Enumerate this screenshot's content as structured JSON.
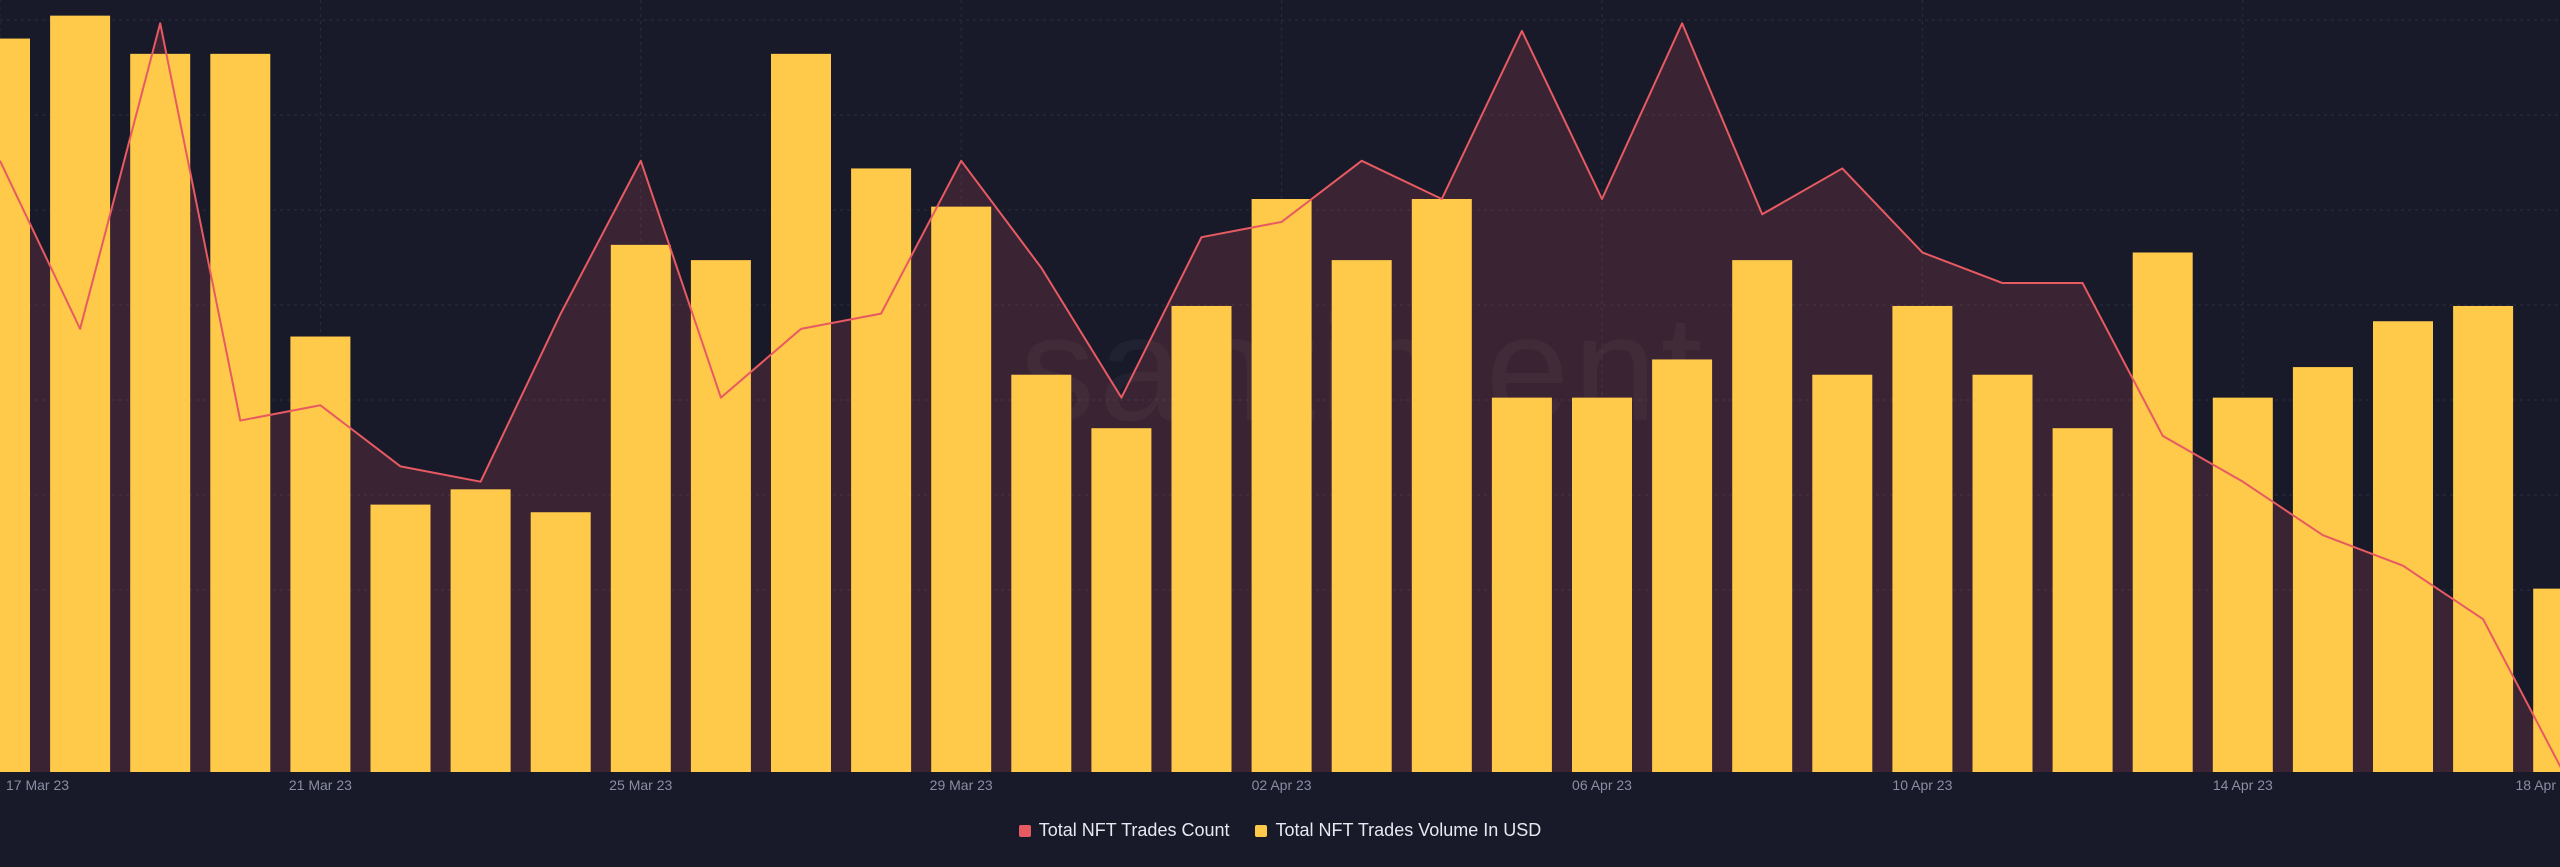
{
  "chart_data": {
    "type": "bar",
    "watermark": "santiment",
    "x_tick_labels": [
      "17 Mar 23",
      "21 Mar 23",
      "25 Mar 23",
      "29 Mar 23",
      "02 Apr 23",
      "06 Apr 23",
      "10 Apr 23",
      "14 Apr 23",
      "18 Apr"
    ],
    "dates": [
      "17 Mar",
      "18 Mar",
      "19 Mar",
      "20 Mar",
      "21 Mar",
      "22 Mar",
      "23 Mar",
      "24 Mar",
      "25 Mar",
      "26 Mar",
      "27 Mar",
      "28 Mar",
      "29 Mar",
      "30 Mar",
      "31 Mar",
      "01 Apr",
      "02 Apr",
      "03 Apr",
      "04 Apr",
      "05 Apr",
      "06 Apr",
      "07 Apr",
      "08 Apr",
      "09 Apr",
      "10 Apr",
      "11 Apr",
      "12 Apr",
      "13 Apr",
      "14 Apr",
      "15 Apr",
      "16 Apr",
      "17 Apr",
      "18 Apr"
    ],
    "series": [
      {
        "name": "Total NFT Trades Count",
        "type": "area",
        "color": "#e85a62",
        "values": [
          80,
          58,
          98,
          46,
          48,
          40,
          38,
          60,
          80,
          49,
          58,
          60,
          80,
          66,
          49,
          70,
          72,
          80,
          75,
          97,
          75,
          98,
          73,
          79,
          68,
          64,
          64,
          44,
          38,
          31,
          27,
          20,
          0
        ]
      },
      {
        "name": "Total NFT Trades Volume In USD",
        "type": "bar",
        "color": "#ffc94a",
        "values": [
          96,
          99,
          94,
          94,
          57,
          35,
          37,
          34,
          69,
          67,
          94,
          79,
          74,
          52,
          45,
          61,
          75,
          67,
          75,
          49,
          49,
          54,
          67,
          52,
          61,
          52,
          45,
          68,
          49,
          53,
          59,
          61,
          24
        ]
      }
    ],
    "ylim": [
      0,
      100
    ],
    "grid": true,
    "legend_position": "bottom-center"
  }
}
